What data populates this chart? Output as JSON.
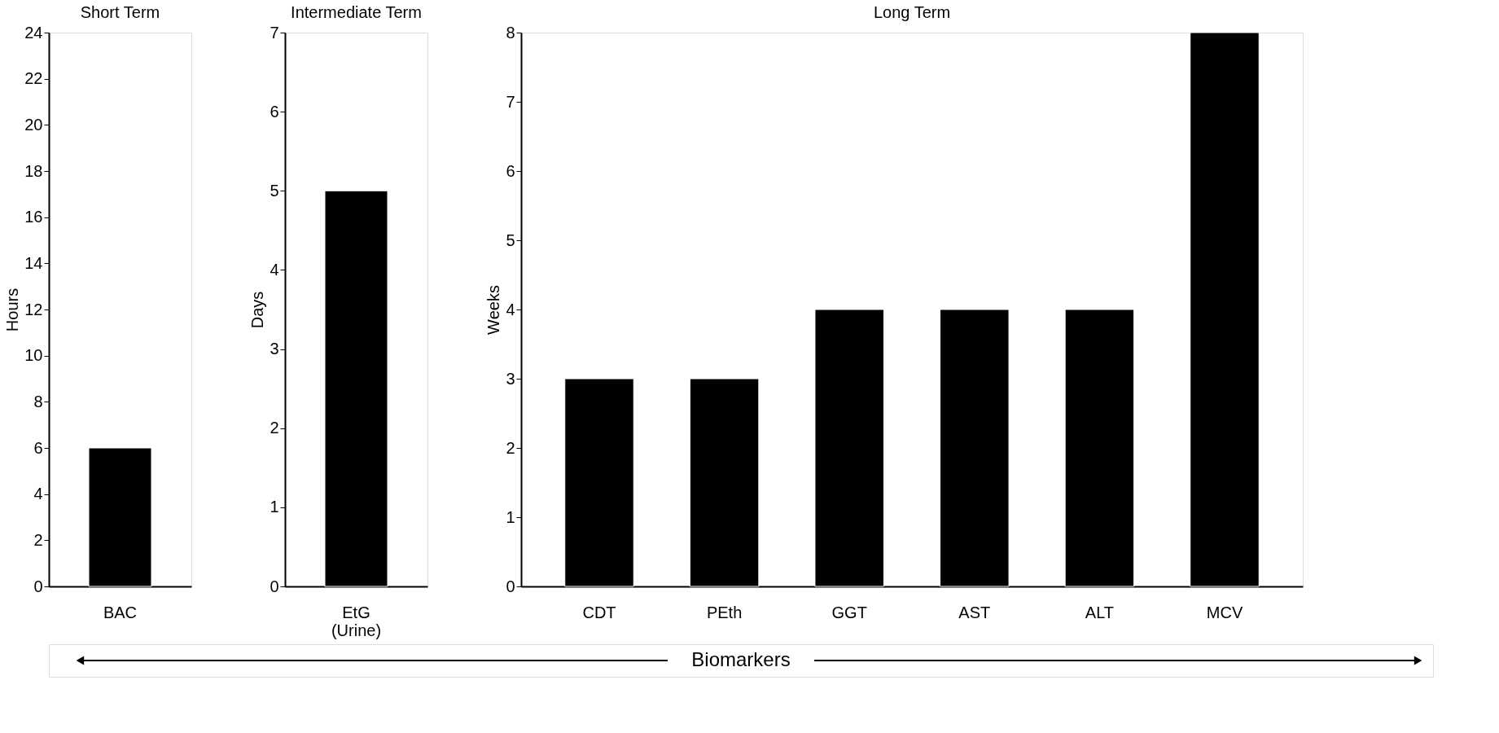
{
  "chart_data": [
    {
      "type": "bar",
      "title": "Short Term",
      "ylabel": "Hours",
      "categories": [
        "BAC"
      ],
      "values": [
        6
      ],
      "color": "#000000",
      "ylim": [
        0,
        24
      ],
      "yticks": [
        0,
        2,
        4,
        6,
        8,
        10,
        12,
        14,
        16,
        18,
        20,
        22,
        24
      ],
      "grid": false,
      "annotations": [
        "Biomarkers"
      ]
    },
    {
      "type": "bar",
      "title": "Intermediate Term",
      "ylabel": "Days",
      "categories": [
        "EtG\n(Urine)"
      ],
      "values": [
        5
      ],
      "color": "#000000",
      "ylim": [
        0,
        7
      ],
      "yticks": [
        0,
        1,
        2,
        3,
        4,
        5,
        6,
        7
      ],
      "grid": false
    },
    {
      "type": "bar",
      "title": "Long Term",
      "ylabel": "Weeks",
      "categories": [
        "CDT",
        "PEth",
        "GGT",
        "AST",
        "ALT",
        "MCV"
      ],
      "values": [
        3,
        3,
        4,
        4,
        4,
        8
      ],
      "color": "#000000",
      "ylim": [
        0,
        8
      ],
      "yticks": [
        0,
        1,
        2,
        3,
        4,
        5,
        6,
        7,
        8
      ],
      "grid": false
    }
  ]
}
